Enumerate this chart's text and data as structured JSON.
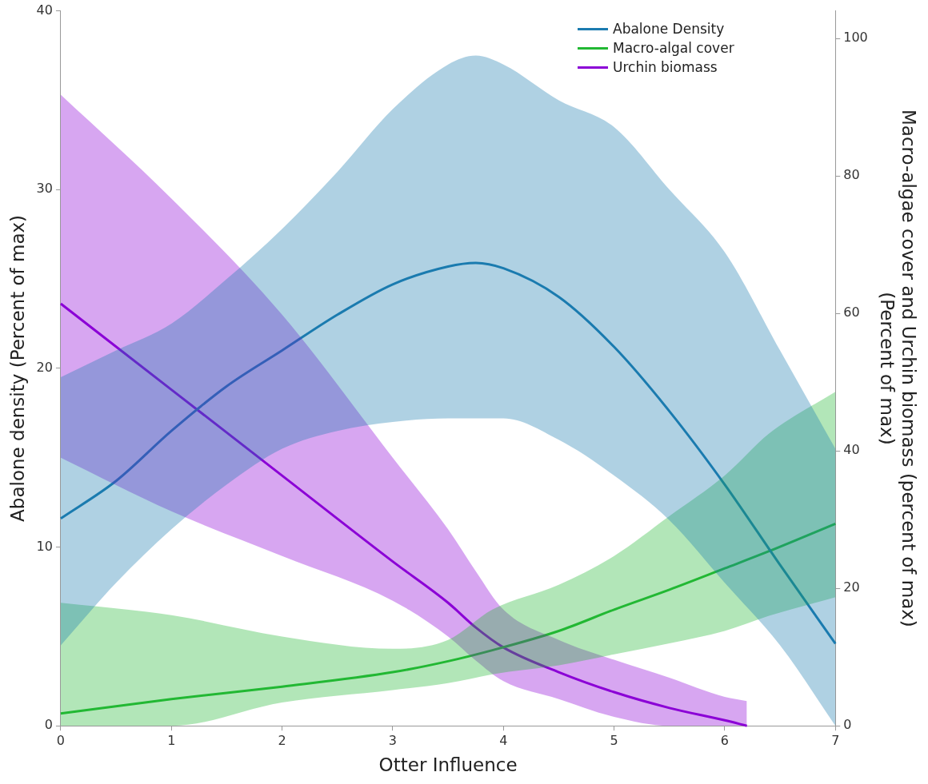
{
  "chart_data": {
    "type": "line",
    "xlabel": "Otter Influence",
    "ylabel": "Abalone density (Percent of max)",
    "y2label": "Macro-algae cover and Urchin biomass (percent of max)\n(Percent of max)",
    "xlim": [
      0,
      7
    ],
    "xticks": [
      0,
      1,
      2,
      3,
      4,
      5,
      6,
      7
    ],
    "ylim": [
      0,
      40
    ],
    "yticks": [
      0,
      10,
      20,
      30,
      40
    ],
    "y2lim": [
      0,
      104
    ],
    "y2ticks": [
      0,
      20,
      40,
      60,
      80,
      100
    ],
    "grid": false,
    "legend": "top right",
    "marker": "none",
    "line_style": "solid",
    "series": [
      {
        "name": "Abalone Density",
        "color": "#1b7bb0",
        "x": [
          0,
          0.5,
          1,
          1.5,
          2,
          2.5,
          3,
          3.5,
          3.75,
          4,
          4.5,
          5,
          5.5,
          6,
          6.5,
          7
        ],
        "values": [
          11.6,
          13.7,
          16.5,
          19,
          21,
          23,
          24.7,
          25.7,
          25.9,
          25.6,
          24,
          21.2,
          17.6,
          13.5,
          9,
          4.6
        ],
        "upper": [
          19.5,
          21,
          22.5,
          25,
          27.8,
          31,
          34.5,
          37,
          37.5,
          37,
          35,
          33.5,
          30,
          26.5,
          21,
          15.5
        ],
        "lower": [
          4.5,
          8,
          11,
          13.5,
          15.5,
          16.5,
          17,
          17.2,
          17.2,
          17.2,
          16,
          14,
          11.5,
          8,
          4.5,
          0
        ]
      },
      {
        "name": "Macro-algal cover",
        "color": "#22b833",
        "axis": "y2",
        "x": [
          0,
          1,
          2,
          3,
          3.5,
          3.9,
          4.5,
          5,
          5.5,
          6,
          6.4,
          7
        ],
        "values": [
          1.8,
          3.9,
          5.7,
          7.8,
          9.4,
          11,
          13.8,
          16.9,
          19.8,
          22.9,
          25.4,
          29.4
        ],
        "upper": [
          17.9,
          16.1,
          13,
          11.2,
          12.5,
          16.9,
          20.5,
          24.7,
          30.5,
          36.4,
          42.5,
          48.6
        ],
        "lower": [
          0,
          0,
          3.4,
          5.2,
          6.2,
          7.5,
          8.8,
          10.4,
          12,
          13.8,
          16,
          18.7
        ]
      },
      {
        "name": "Urchin biomass",
        "color": "#8b00d6",
        "axis": "y2",
        "x": [
          0,
          1,
          2,
          3,
          3.5,
          3.75,
          4,
          4.5,
          5,
          5.5,
          6,
          6.2
        ],
        "values": [
          61.4,
          48.9,
          36.4,
          23.9,
          17.9,
          14.3,
          11.4,
          7.8,
          4.9,
          2.6,
          0.8,
          0
        ],
        "upper": [
          91.8,
          76.7,
          59.8,
          39,
          28.6,
          22.5,
          16.9,
          12.5,
          9.6,
          7,
          4.2,
          3.6
        ],
        "lower": [
          39,
          31.2,
          24.7,
          18.2,
          13,
          9.5,
          6.5,
          3.9,
          1.3,
          0,
          0,
          0
        ]
      }
    ]
  }
}
